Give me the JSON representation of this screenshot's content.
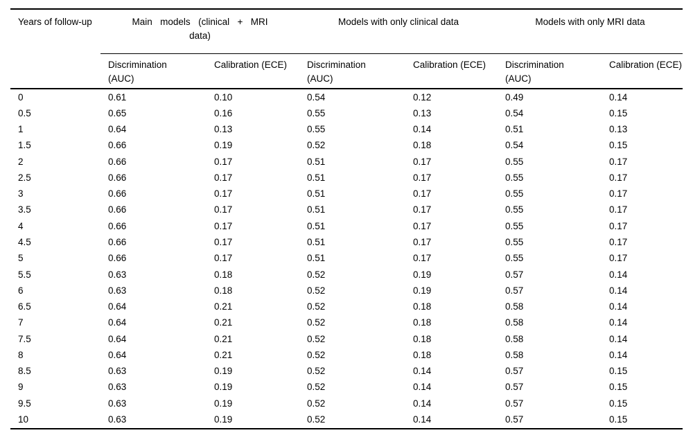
{
  "table": {
    "col1_header": "Years of follow-up",
    "groups": [
      {
        "label": "Main models (clinical + MRI data)"
      },
      {
        "label": "Models with only clinical data"
      },
      {
        "label": "Models with only MRI data"
      }
    ],
    "sub_headers": [
      "Discrimination (AUC)",
      "Calibration (ECE)",
      "Discrimination (AUC)",
      "Calibration (ECE)",
      "Discrimination (AUC)",
      "Calibration (ECE)"
    ],
    "rows": [
      {
        "years": "0",
        "values": [
          "0.61",
          "0.10",
          "0.54",
          "0.12",
          "0.49",
          "0.14"
        ]
      },
      {
        "years": "0.5",
        "values": [
          "0.65",
          "0.16",
          "0.55",
          "0.13",
          "0.54",
          "0.15"
        ]
      },
      {
        "years": "1",
        "values": [
          "0.64",
          "0.13",
          "0.55",
          "0.14",
          "0.51",
          "0.13"
        ]
      },
      {
        "years": "1.5",
        "values": [
          "0.66",
          "0.19",
          "0.52",
          "0.18",
          "0.54",
          "0.15"
        ]
      },
      {
        "years": "2",
        "values": [
          "0.66",
          "0.17",
          "0.51",
          "0.17",
          "0.55",
          "0.17"
        ]
      },
      {
        "years": "2.5",
        "values": [
          "0.66",
          "0.17",
          "0.51",
          "0.17",
          "0.55",
          "0.17"
        ]
      },
      {
        "years": "3",
        "values": [
          "0.66",
          "0.17",
          "0.51",
          "0.17",
          "0.55",
          "0.17"
        ]
      },
      {
        "years": "3.5",
        "values": [
          "0.66",
          "0.17",
          "0.51",
          "0.17",
          "0.55",
          "0.17"
        ]
      },
      {
        "years": "4",
        "values": [
          "0.66",
          "0.17",
          "0.51",
          "0.17",
          "0.55",
          "0.17"
        ]
      },
      {
        "years": "4.5",
        "values": [
          "0.66",
          "0.17",
          "0.51",
          "0.17",
          "0.55",
          "0.17"
        ]
      },
      {
        "years": "5",
        "values": [
          "0.66",
          "0.17",
          "0.51",
          "0.17",
          "0.55",
          "0.17"
        ]
      },
      {
        "years": "5.5",
        "values": [
          "0.63",
          "0.18",
          "0.52",
          "0.19",
          "0.57",
          "0.14"
        ]
      },
      {
        "years": "6",
        "values": [
          "0.63",
          "0.18",
          "0.52",
          "0.19",
          "0.57",
          "0.14"
        ]
      },
      {
        "years": "6.5",
        "values": [
          "0.64",
          "0.21",
          "0.52",
          "0.18",
          "0.58",
          "0.14"
        ]
      },
      {
        "years": "7",
        "values": [
          "0.64",
          "0.21",
          "0.52",
          "0.18",
          "0.58",
          "0.14"
        ]
      },
      {
        "years": "7.5",
        "values": [
          "0.64",
          "0.21",
          "0.52",
          "0.18",
          "0.58",
          "0.14"
        ]
      },
      {
        "years": "8",
        "values": [
          "0.64",
          "0.21",
          "0.52",
          "0.18",
          "0.58",
          "0.14"
        ]
      },
      {
        "years": "8.5",
        "values": [
          "0.63",
          "0.19",
          "0.52",
          "0.14",
          "0.57",
          "0.15"
        ]
      },
      {
        "years": "9",
        "values": [
          "0.63",
          "0.19",
          "0.52",
          "0.14",
          "0.57",
          "0.15"
        ]
      },
      {
        "years": "9.5",
        "values": [
          "0.63",
          "0.19",
          "0.52",
          "0.14",
          "0.57",
          "0.15"
        ]
      },
      {
        "years": "10",
        "values": [
          "0.63",
          "0.19",
          "0.52",
          "0.14",
          "0.57",
          "0.15"
        ]
      }
    ]
  },
  "chart_data": {
    "type": "table",
    "title": "",
    "columns": [
      "Years of follow-up",
      "Main models (clinical + MRI data) - Discrimination (AUC)",
      "Main models (clinical + MRI data) - Calibration (ECE)",
      "Models with only clinical data - Discrimination (AUC)",
      "Models with only clinical data - Calibration (ECE)",
      "Models with only MRI data - Discrimination (AUC)",
      "Models with only MRI data - Calibration (ECE)"
    ],
    "rows": [
      [
        0,
        0.61,
        0.1,
        0.54,
        0.12,
        0.49,
        0.14
      ],
      [
        0.5,
        0.65,
        0.16,
        0.55,
        0.13,
        0.54,
        0.15
      ],
      [
        1,
        0.64,
        0.13,
        0.55,
        0.14,
        0.51,
        0.13
      ],
      [
        1.5,
        0.66,
        0.19,
        0.52,
        0.18,
        0.54,
        0.15
      ],
      [
        2,
        0.66,
        0.17,
        0.51,
        0.17,
        0.55,
        0.17
      ],
      [
        2.5,
        0.66,
        0.17,
        0.51,
        0.17,
        0.55,
        0.17
      ],
      [
        3,
        0.66,
        0.17,
        0.51,
        0.17,
        0.55,
        0.17
      ],
      [
        3.5,
        0.66,
        0.17,
        0.51,
        0.17,
        0.55,
        0.17
      ],
      [
        4,
        0.66,
        0.17,
        0.51,
        0.17,
        0.55,
        0.17
      ],
      [
        4.5,
        0.66,
        0.17,
        0.51,
        0.17,
        0.55,
        0.17
      ],
      [
        5,
        0.66,
        0.17,
        0.51,
        0.17,
        0.55,
        0.17
      ],
      [
        5.5,
        0.63,
        0.18,
        0.52,
        0.19,
        0.57,
        0.14
      ],
      [
        6,
        0.63,
        0.18,
        0.52,
        0.19,
        0.57,
        0.14
      ],
      [
        6.5,
        0.64,
        0.21,
        0.52,
        0.18,
        0.58,
        0.14
      ],
      [
        7,
        0.64,
        0.21,
        0.52,
        0.18,
        0.58,
        0.14
      ],
      [
        7.5,
        0.64,
        0.21,
        0.52,
        0.18,
        0.58,
        0.14
      ],
      [
        8,
        0.64,
        0.21,
        0.52,
        0.18,
        0.58,
        0.14
      ],
      [
        8.5,
        0.63,
        0.19,
        0.52,
        0.14,
        0.57,
        0.15
      ],
      [
        9,
        0.63,
        0.19,
        0.52,
        0.14,
        0.57,
        0.15
      ],
      [
        9.5,
        0.63,
        0.19,
        0.52,
        0.14,
        0.57,
        0.15
      ],
      [
        10,
        0.63,
        0.19,
        0.52,
        0.14,
        0.57,
        0.15
      ]
    ]
  },
  "colors": {
    "background": "#ffffff",
    "text": "#000000",
    "rule": "#000000"
  }
}
